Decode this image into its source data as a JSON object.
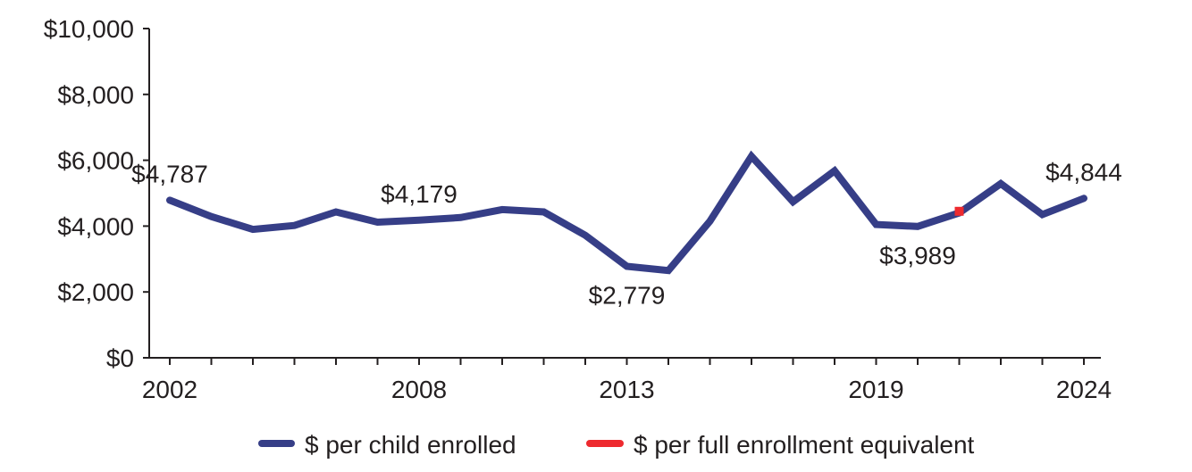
{
  "chart_data": {
    "type": "line",
    "title": "",
    "xlabel": "",
    "ylabel": "",
    "x": [
      2002,
      2003,
      2004,
      2005,
      2006,
      2007,
      2008,
      2009,
      2010,
      2011,
      2012,
      2013,
      2014,
      2015,
      2016,
      2017,
      2018,
      2019,
      2020,
      2021,
      2022,
      2023,
      2024
    ],
    "xlim": [
      2002,
      2024
    ],
    "xticks": [
      2002,
      2003,
      2004,
      2005,
      2006,
      2007,
      2008,
      2009,
      2010,
      2011,
      2012,
      2013,
      2014,
      2015,
      2016,
      2017,
      2018,
      2019,
      2020,
      2021,
      2022,
      2023,
      2024
    ],
    "xtick_labels": [
      {
        "x": 2002,
        "label": "2002"
      },
      {
        "x": 2008,
        "label": "2008"
      },
      {
        "x": 2013,
        "label": "2013"
      },
      {
        "x": 2019,
        "label": "2019"
      },
      {
        "x": 2024,
        "label": "2024"
      }
    ],
    "ylim": [
      0,
      10000
    ],
    "yticks": [
      {
        "value": 0,
        "label": "$0"
      },
      {
        "value": 2000,
        "label": "$2,000"
      },
      {
        "value": 4000,
        "label": "$4,000"
      },
      {
        "value": 6000,
        "label": "$6,000"
      },
      {
        "value": 8000,
        "label": "$8,000"
      },
      {
        "value": 10000,
        "label": "$10,000"
      }
    ],
    "grid": false,
    "legend_position": "bottom",
    "series": [
      {
        "name": "$ per child enrolled",
        "color": "#363e87",
        "values": [
          4787,
          4290,
          3900,
          4020,
          4430,
          4120,
          4179,
          4260,
          4500,
          4430,
          3720,
          2779,
          2650,
          4150,
          6120,
          4740,
          5680,
          4050,
          3989,
          4400,
          5290,
          4350,
          4844
        ]
      },
      {
        "name": "$ per full enrollment equivalent",
        "color": "#ee2a2f",
        "points": [
          {
            "x": 2021,
            "y": 4450
          }
        ]
      }
    ],
    "annotations": [
      {
        "x": 2002,
        "y": 4787,
        "label": "$4,787",
        "position": "above"
      },
      {
        "x": 2008,
        "y": 4179,
        "label": "$4,179",
        "position": "above"
      },
      {
        "x": 2013,
        "y": 2779,
        "label": "$2,779",
        "position": "below"
      },
      {
        "x": 2020,
        "y": 3989,
        "label": "$3,989",
        "position": "below"
      },
      {
        "x": 2024,
        "y": 4844,
        "label": "$4,844",
        "position": "above"
      }
    ]
  }
}
